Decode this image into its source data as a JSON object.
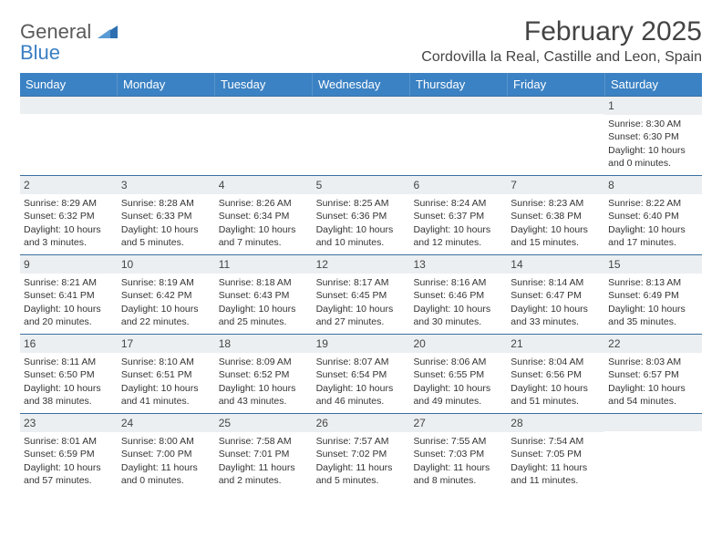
{
  "brand": {
    "name1": "General",
    "name2": "Blue"
  },
  "header": {
    "month_title": "February 2025",
    "location": "Cordovilla la Real, Castille and Leon, Spain"
  },
  "colors": {
    "header_bg": "#3b82c4",
    "row_divider": "#3b6fa0",
    "daynum_bg": "#eceff1",
    "logo_blue": "#3b7fc4",
    "text": "#333333"
  },
  "weekdays": [
    "Sunday",
    "Monday",
    "Tuesday",
    "Wednesday",
    "Thursday",
    "Friday",
    "Saturday"
  ],
  "weeks": [
    [
      {
        "n": "",
        "lines": []
      },
      {
        "n": "",
        "lines": []
      },
      {
        "n": "",
        "lines": []
      },
      {
        "n": "",
        "lines": []
      },
      {
        "n": "",
        "lines": []
      },
      {
        "n": "",
        "lines": []
      },
      {
        "n": "1",
        "lines": [
          "Sunrise: 8:30 AM",
          "Sunset: 6:30 PM",
          "Daylight: 10 hours and 0 minutes."
        ]
      }
    ],
    [
      {
        "n": "2",
        "lines": [
          "Sunrise: 8:29 AM",
          "Sunset: 6:32 PM",
          "Daylight: 10 hours and 3 minutes."
        ]
      },
      {
        "n": "3",
        "lines": [
          "Sunrise: 8:28 AM",
          "Sunset: 6:33 PM",
          "Daylight: 10 hours and 5 minutes."
        ]
      },
      {
        "n": "4",
        "lines": [
          "Sunrise: 8:26 AM",
          "Sunset: 6:34 PM",
          "Daylight: 10 hours and 7 minutes."
        ]
      },
      {
        "n": "5",
        "lines": [
          "Sunrise: 8:25 AM",
          "Sunset: 6:36 PM",
          "Daylight: 10 hours and 10 minutes."
        ]
      },
      {
        "n": "6",
        "lines": [
          "Sunrise: 8:24 AM",
          "Sunset: 6:37 PM",
          "Daylight: 10 hours and 12 minutes."
        ]
      },
      {
        "n": "7",
        "lines": [
          "Sunrise: 8:23 AM",
          "Sunset: 6:38 PM",
          "Daylight: 10 hours and 15 minutes."
        ]
      },
      {
        "n": "8",
        "lines": [
          "Sunrise: 8:22 AM",
          "Sunset: 6:40 PM",
          "Daylight: 10 hours and 17 minutes."
        ]
      }
    ],
    [
      {
        "n": "9",
        "lines": [
          "Sunrise: 8:21 AM",
          "Sunset: 6:41 PM",
          "Daylight: 10 hours and 20 minutes."
        ]
      },
      {
        "n": "10",
        "lines": [
          "Sunrise: 8:19 AM",
          "Sunset: 6:42 PM",
          "Daylight: 10 hours and 22 minutes."
        ]
      },
      {
        "n": "11",
        "lines": [
          "Sunrise: 8:18 AM",
          "Sunset: 6:43 PM",
          "Daylight: 10 hours and 25 minutes."
        ]
      },
      {
        "n": "12",
        "lines": [
          "Sunrise: 8:17 AM",
          "Sunset: 6:45 PM",
          "Daylight: 10 hours and 27 minutes."
        ]
      },
      {
        "n": "13",
        "lines": [
          "Sunrise: 8:16 AM",
          "Sunset: 6:46 PM",
          "Daylight: 10 hours and 30 minutes."
        ]
      },
      {
        "n": "14",
        "lines": [
          "Sunrise: 8:14 AM",
          "Sunset: 6:47 PM",
          "Daylight: 10 hours and 33 minutes."
        ]
      },
      {
        "n": "15",
        "lines": [
          "Sunrise: 8:13 AM",
          "Sunset: 6:49 PM",
          "Daylight: 10 hours and 35 minutes."
        ]
      }
    ],
    [
      {
        "n": "16",
        "lines": [
          "Sunrise: 8:11 AM",
          "Sunset: 6:50 PM",
          "Daylight: 10 hours and 38 minutes."
        ]
      },
      {
        "n": "17",
        "lines": [
          "Sunrise: 8:10 AM",
          "Sunset: 6:51 PM",
          "Daylight: 10 hours and 41 minutes."
        ]
      },
      {
        "n": "18",
        "lines": [
          "Sunrise: 8:09 AM",
          "Sunset: 6:52 PM",
          "Daylight: 10 hours and 43 minutes."
        ]
      },
      {
        "n": "19",
        "lines": [
          "Sunrise: 8:07 AM",
          "Sunset: 6:54 PM",
          "Daylight: 10 hours and 46 minutes."
        ]
      },
      {
        "n": "20",
        "lines": [
          "Sunrise: 8:06 AM",
          "Sunset: 6:55 PM",
          "Daylight: 10 hours and 49 minutes."
        ]
      },
      {
        "n": "21",
        "lines": [
          "Sunrise: 8:04 AM",
          "Sunset: 6:56 PM",
          "Daylight: 10 hours and 51 minutes."
        ]
      },
      {
        "n": "22",
        "lines": [
          "Sunrise: 8:03 AM",
          "Sunset: 6:57 PM",
          "Daylight: 10 hours and 54 minutes."
        ]
      }
    ],
    [
      {
        "n": "23",
        "lines": [
          "Sunrise: 8:01 AM",
          "Sunset: 6:59 PM",
          "Daylight: 10 hours and 57 minutes."
        ]
      },
      {
        "n": "24",
        "lines": [
          "Sunrise: 8:00 AM",
          "Sunset: 7:00 PM",
          "Daylight: 11 hours and 0 minutes."
        ]
      },
      {
        "n": "25",
        "lines": [
          "Sunrise: 7:58 AM",
          "Sunset: 7:01 PM",
          "Daylight: 11 hours and 2 minutes."
        ]
      },
      {
        "n": "26",
        "lines": [
          "Sunrise: 7:57 AM",
          "Sunset: 7:02 PM",
          "Daylight: 11 hours and 5 minutes."
        ]
      },
      {
        "n": "27",
        "lines": [
          "Sunrise: 7:55 AM",
          "Sunset: 7:03 PM",
          "Daylight: 11 hours and 8 minutes."
        ]
      },
      {
        "n": "28",
        "lines": [
          "Sunrise: 7:54 AM",
          "Sunset: 7:05 PM",
          "Daylight: 11 hours and 11 minutes."
        ]
      },
      {
        "n": "",
        "lines": []
      }
    ]
  ]
}
